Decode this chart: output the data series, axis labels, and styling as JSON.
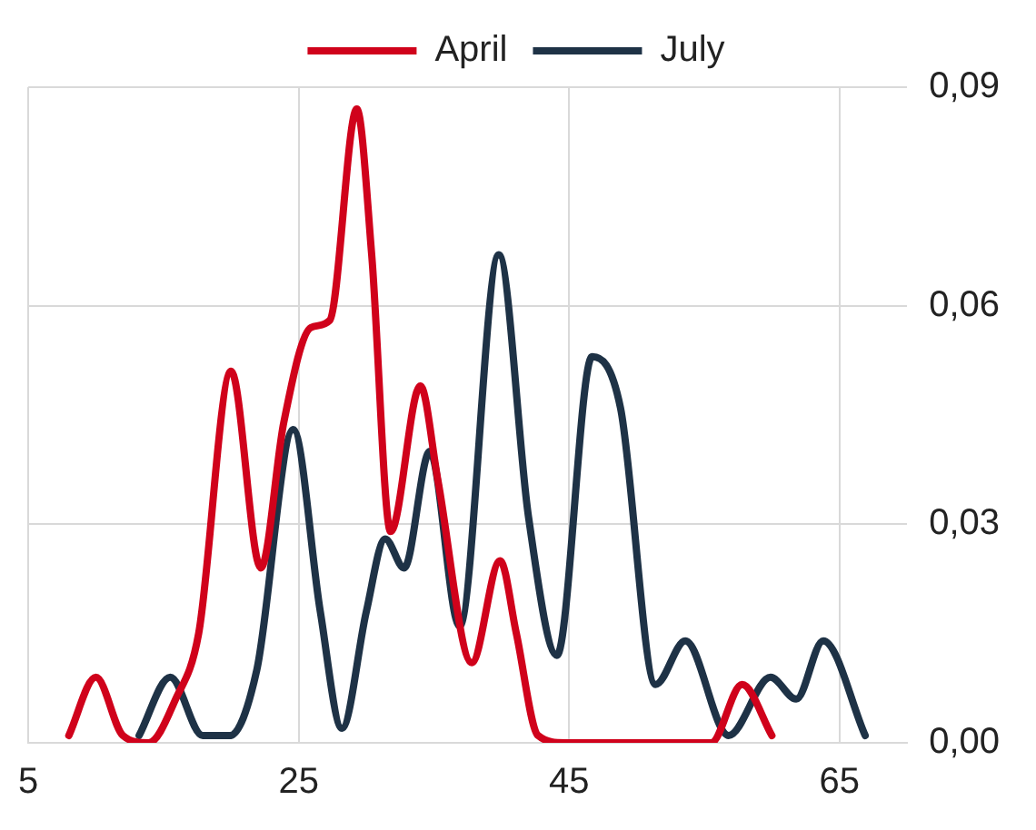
{
  "chart_data": {
    "type": "line",
    "legend": "top",
    "grid": true,
    "marker": "none",
    "line_style": "solid",
    "xlim": [
      5,
      70
    ],
    "xticks": [
      5,
      25,
      45,
      65
    ],
    "ylim": [
      0,
      0.09
    ],
    "yticks": [
      {
        "value": 0,
        "label": "0,00"
      },
      {
        "value": 0.03,
        "label": "0,03"
      },
      {
        "value": 0.06,
        "label": "0,06"
      },
      {
        "value": 0.09,
        "label": "0,09"
      }
    ],
    "series": [
      {
        "name": "April",
        "color": "#d0021b",
        "x": [
          8,
          10,
          12,
          13.9,
          15.9,
          17.6,
          20,
          22.2,
          23.9,
          25.9,
          27.3,
          29.3,
          30.4,
          31.8,
          34,
          35.3,
          37.8,
          39.9,
          41.1,
          42.7,
          44.7,
          55.5,
          57.8,
          60
        ],
        "values": [
          0.001,
          0.009,
          0.001,
          0,
          0.006,
          0.015,
          0.051,
          0.024,
          0.044,
          0.057,
          0.058,
          0.087,
          0.067,
          0.029,
          0.049,
          0.036,
          0.011,
          0.025,
          0.015,
          0.001,
          0,
          0,
          0.008,
          0.001
        ]
      },
      {
        "name": "July",
        "color": "#1e3246",
        "x": [
          13.2,
          15.5,
          17.9,
          19.9,
          21.9,
          24.6,
          26.6,
          28.2,
          30,
          31.4,
          32.8,
          34.7,
          36.9,
          39.8,
          42,
          44.1,
          46.7,
          48.8,
          51.4,
          53.6,
          56.8,
          59.9,
          61.8,
          63.8,
          66.9
        ],
        "values": [
          0.001,
          0.009,
          0.001,
          0.001,
          0.01,
          0.043,
          0.018,
          0.002,
          0.018,
          0.028,
          0.024,
          0.04,
          0.016,
          0.067,
          0.031,
          0.012,
          0.053,
          0.046,
          0.008,
          0.014,
          0.001,
          0.009,
          0.006,
          0.014,
          0.001
        ]
      }
    ]
  }
}
